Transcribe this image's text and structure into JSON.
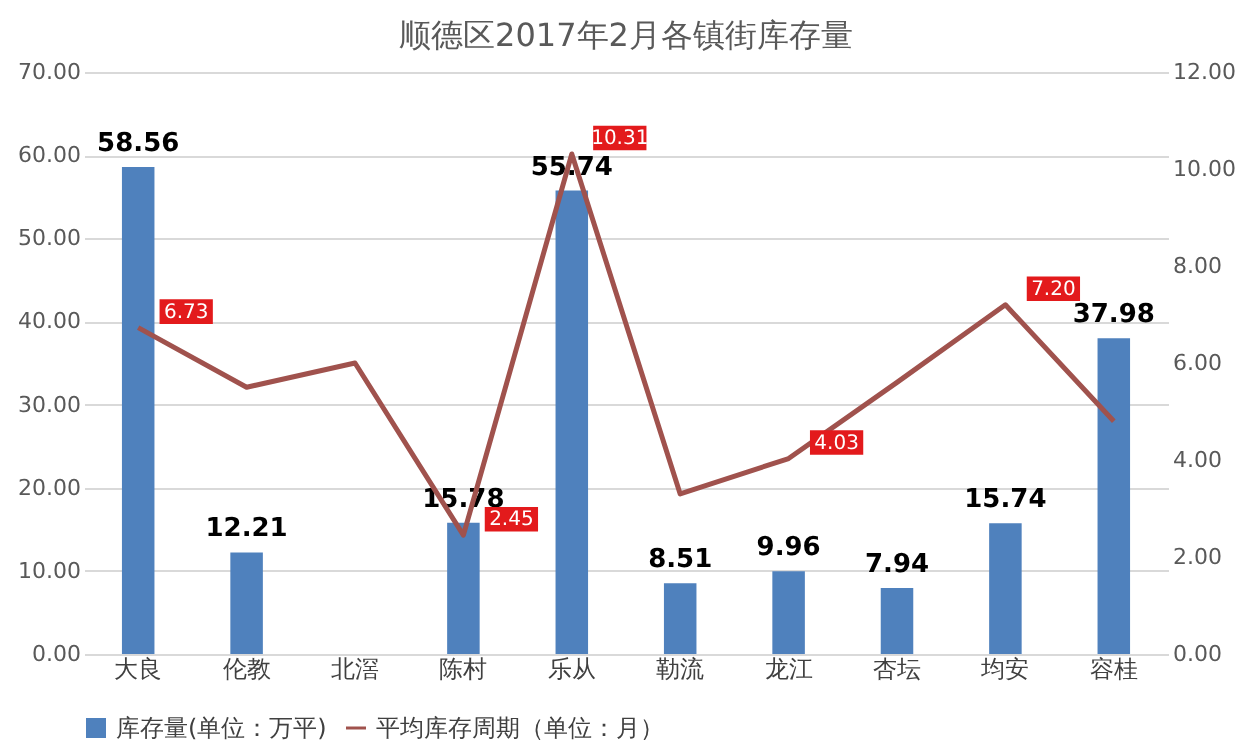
{
  "chart_data": {
    "type": "bar",
    "title": "顺德区2017年2月各镇街库存量",
    "categories": [
      "大良",
      "伦教",
      "北滘",
      "陈村",
      "乐从",
      "勒流",
      "龙江",
      "杏坛",
      "均安",
      "容桂"
    ],
    "series": [
      {
        "name": "库存量(单位：万平)",
        "color": "#4f81bd",
        "values": [
          58.56,
          12.21,
          null,
          15.78,
          55.74,
          8.51,
          9.96,
          7.94,
          15.74,
          37.98
        ]
      },
      {
        "name": "平均库存周期（单位：月）",
        "type": "line",
        "axis": "y2",
        "color": "#a0524d",
        "values": [
          6.73,
          5.5,
          6.0,
          2.45,
          10.31,
          3.3,
          4.03,
          5.6,
          7.2,
          4.8
        ],
        "value_labels": [
          "6.73",
          null,
          null,
          "2.45",
          "10.31",
          null,
          "4.03",
          null,
          "7.20",
          null
        ]
      }
    ],
    "ylim": [
      0,
      70
    ],
    "yticks": [
      {
        "value": 0,
        "label": "0.00"
      },
      {
        "value": 10,
        "label": "10.00"
      },
      {
        "value": 20,
        "label": "20.00"
      },
      {
        "value": 30,
        "label": "30.00"
      },
      {
        "value": 40,
        "label": "40.00"
      },
      {
        "value": 50,
        "label": "50.00"
      },
      {
        "value": 60,
        "label": "60.00"
      },
      {
        "value": 70,
        "label": "70.00"
      }
    ],
    "y2lim": [
      0,
      12
    ],
    "y2ticks": [
      {
        "value": 0,
        "label": "0.00"
      },
      {
        "value": 2,
        "label": "2.00"
      },
      {
        "value": 4,
        "label": "4.00"
      },
      {
        "value": 6,
        "label": "6.00"
      },
      {
        "value": 8,
        "label": "8.00"
      },
      {
        "value": 10,
        "label": "10.00"
      },
      {
        "value": 12,
        "label": "12.00"
      }
    ],
    "grid": "y",
    "legend": "bottom",
    "data_labels": true
  }
}
